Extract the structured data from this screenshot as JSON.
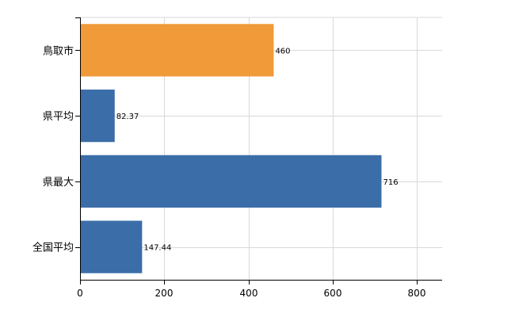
{
  "chart_data": {
    "type": "bar",
    "orientation": "horizontal",
    "categories": [
      "鳥取市",
      "県平均",
      "県最大",
      "全国平均"
    ],
    "values": [
      460,
      82.37,
      716,
      147.44
    ],
    "value_labels": [
      "460",
      "82.37",
      "716",
      "147.44"
    ],
    "bar_colors": [
      "#F09A3A",
      "#3B6EA8",
      "#3B6EA8",
      "#3B6EA8"
    ],
    "xlim": [
      0,
      860
    ],
    "xticks": [
      0,
      200,
      400,
      600,
      800
    ],
    "xtick_labels": [
      "0",
      "200",
      "400",
      "600",
      "800"
    ],
    "grid": true,
    "title": "",
    "xlabel": "",
    "ylabel": ""
  }
}
